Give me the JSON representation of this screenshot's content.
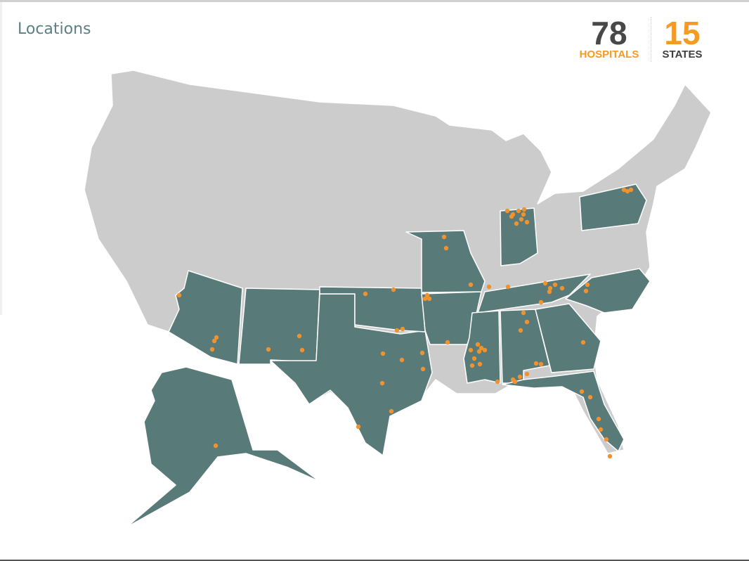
{
  "header": {
    "title": "Locations"
  },
  "stats": [
    {
      "value": "78",
      "label": "HOSPITALS"
    },
    {
      "value": "15",
      "label": "STATES"
    }
  ],
  "map": {
    "base_color": "#cccccc",
    "highlight_color": "#587a79",
    "marker_color": "#f0922e",
    "highlighted_states": [
      "Arizona",
      "New Mexico",
      "Texas",
      "Oklahoma",
      "Arkansas",
      "Missouri",
      "Indiana",
      "Pennsylvania",
      "Tennessee",
      "Mississippi",
      "Alabama",
      "Georgia",
      "North Carolina",
      "Florida",
      "Alaska"
    ]
  }
}
